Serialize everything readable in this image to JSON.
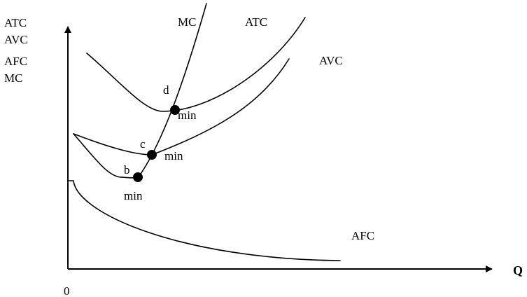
{
  "y_axis_labels": [
    "ATC",
    "AVC",
    "AFC",
    "MC"
  ],
  "x_axis_label": "Q",
  "origin_label": "0",
  "curves": {
    "mc": "MC",
    "atc": "ATC",
    "avc": "AVC",
    "afc": "AFC"
  },
  "points": {
    "b": {
      "label": "b",
      "annotation": "min"
    },
    "c": {
      "label": "c",
      "annotation": "min"
    },
    "d": {
      "label": "d",
      "annotation": "min"
    }
  },
  "colors": {
    "line": "#000000",
    "background": "#ffffff"
  }
}
